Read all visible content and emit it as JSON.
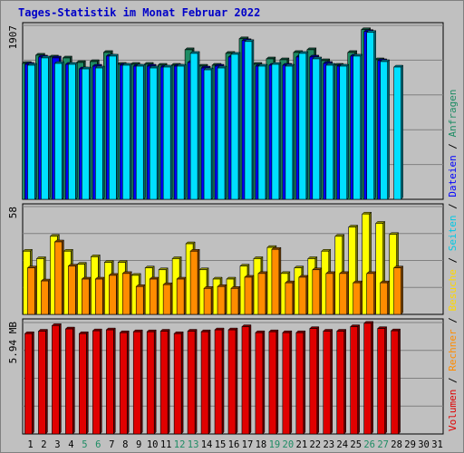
{
  "chart_data": [
    {
      "type": "bar",
      "title": "Tages-Statistik im Monat Februar 2022",
      "panel": "requests",
      "y_tick_label": "1907",
      "ylim": [
        0,
        1907
      ],
      "categories": [
        "1",
        "2",
        "3",
        "4",
        "5",
        "6",
        "7",
        "8",
        "9",
        "10",
        "11",
        "12",
        "13",
        "14",
        "15",
        "16",
        "17",
        "18",
        "19",
        "20",
        "21",
        "22",
        "23",
        "24",
        "25",
        "26",
        "27",
        "28",
        "29",
        "30",
        "31"
      ],
      "weekend_days": [
        "5",
        "6",
        "12",
        "13",
        "19",
        "20",
        "26",
        "27"
      ],
      "series": [
        {
          "name": "Anfragen",
          "color": "#1e8c64",
          "values": [
            1490,
            1580,
            1560,
            1550,
            1500,
            1510,
            1610,
            1480,
            1480,
            1480,
            1470,
            1470,
            1640,
            1460,
            1470,
            1600,
            1760,
            1480,
            1540,
            1530,
            1610,
            1640,
            1520,
            1470,
            1610,
            1860,
            1530,
            0,
            0,
            0,
            0
          ]
        },
        {
          "name": "Dateien",
          "color": "#0000ff",
          "values": [
            1480,
            1560,
            1550,
            1480,
            1430,
            1460,
            1570,
            1470,
            1460,
            1460,
            1450,
            1460,
            1500,
            1440,
            1460,
            1560,
            1740,
            1460,
            1470,
            1470,
            1560,
            1560,
            1490,
            1460,
            1570,
            1840,
            1520,
            0,
            0,
            0,
            0
          ]
        },
        {
          "name": "Seiten",
          "color": "#00e0ff",
          "values": [
            1470,
            1550,
            1490,
            1480,
            1430,
            1440,
            1570,
            1470,
            1460,
            1440,
            1450,
            1460,
            1600,
            1420,
            1440,
            1590,
            1730,
            1460,
            1480,
            1460,
            1600,
            1540,
            1470,
            1460,
            1570,
            1830,
            1510,
            1450,
            0,
            0,
            0
          ]
        }
      ]
    },
    {
      "type": "bar",
      "panel": "visits",
      "y_tick_label": "58",
      "ylim": [
        0,
        58
      ],
      "categories": [
        "1",
        "2",
        "3",
        "4",
        "5",
        "6",
        "7",
        "8",
        "9",
        "10",
        "11",
        "12",
        "13",
        "14",
        "15",
        "16",
        "17",
        "18",
        "19",
        "20",
        "21",
        "22",
        "23",
        "24",
        "25",
        "26",
        "27",
        "28",
        "29",
        "30",
        "31"
      ],
      "series": [
        {
          "name": "Besuche",
          "color": "#ffff00",
          "values": [
            34,
            30,
            42,
            34,
            27,
            31,
            28,
            28,
            21,
            25,
            24,
            30,
            38,
            24,
            19,
            19,
            26,
            30,
            36,
            22,
            25,
            30,
            34,
            42,
            47,
            54,
            49,
            43,
            0,
            0,
            0
          ]
        },
        {
          "name": "Rechner",
          "color": "#ff8c00",
          "values": [
            25,
            18,
            39,
            26,
            19,
            19,
            21,
            22,
            15,
            19,
            16,
            19,
            34,
            14,
            15,
            14,
            20,
            22,
            35,
            17,
            20,
            24,
            22,
            22,
            17,
            22,
            17,
            25,
            0,
            0,
            0
          ]
        }
      ]
    },
    {
      "type": "bar",
      "panel": "volume",
      "y_tick_label": "5.94 MB",
      "ylim": [
        0,
        5.94
      ],
      "categories": [
        "1",
        "2",
        "3",
        "4",
        "5",
        "6",
        "7",
        "8",
        "9",
        "10",
        "11",
        "12",
        "13",
        "14",
        "15",
        "16",
        "17",
        "18",
        "19",
        "20",
        "21",
        "22",
        "23",
        "24",
        "25",
        "26",
        "27",
        "28",
        "29",
        "30",
        "31"
      ],
      "series": [
        {
          "name": "Volumen",
          "color": "#e00000",
          "values": [
            5.35,
            5.48,
            5.78,
            5.6,
            5.35,
            5.5,
            5.55,
            5.4,
            5.45,
            5.45,
            5.48,
            5.35,
            5.48,
            5.45,
            5.55,
            5.55,
            5.72,
            5.4,
            5.45,
            5.4,
            5.4,
            5.62,
            5.48,
            5.48,
            5.72,
            5.9,
            5.62,
            5.5,
            0,
            0,
            0
          ]
        }
      ]
    }
  ],
  "legend": [
    {
      "label": "Volumen",
      "color": "#e00000"
    },
    {
      "label": "Rechner",
      "color": "#ff8c00"
    },
    {
      "label": "Besuche",
      "color": "#ffd700"
    },
    {
      "label": "Seiten",
      "color": "#00c8e6"
    },
    {
      "label": "Dateien",
      "color": "#0000ff"
    },
    {
      "label": "Anfragen",
      "color": "#1e8c64"
    }
  ],
  "legend_separator": "/",
  "colors": {
    "title": "#0000c8",
    "background": "#c0c0c0",
    "grid": "#808080",
    "weekend_label": "#1e8c64",
    "weekday_label": "#000000"
  }
}
